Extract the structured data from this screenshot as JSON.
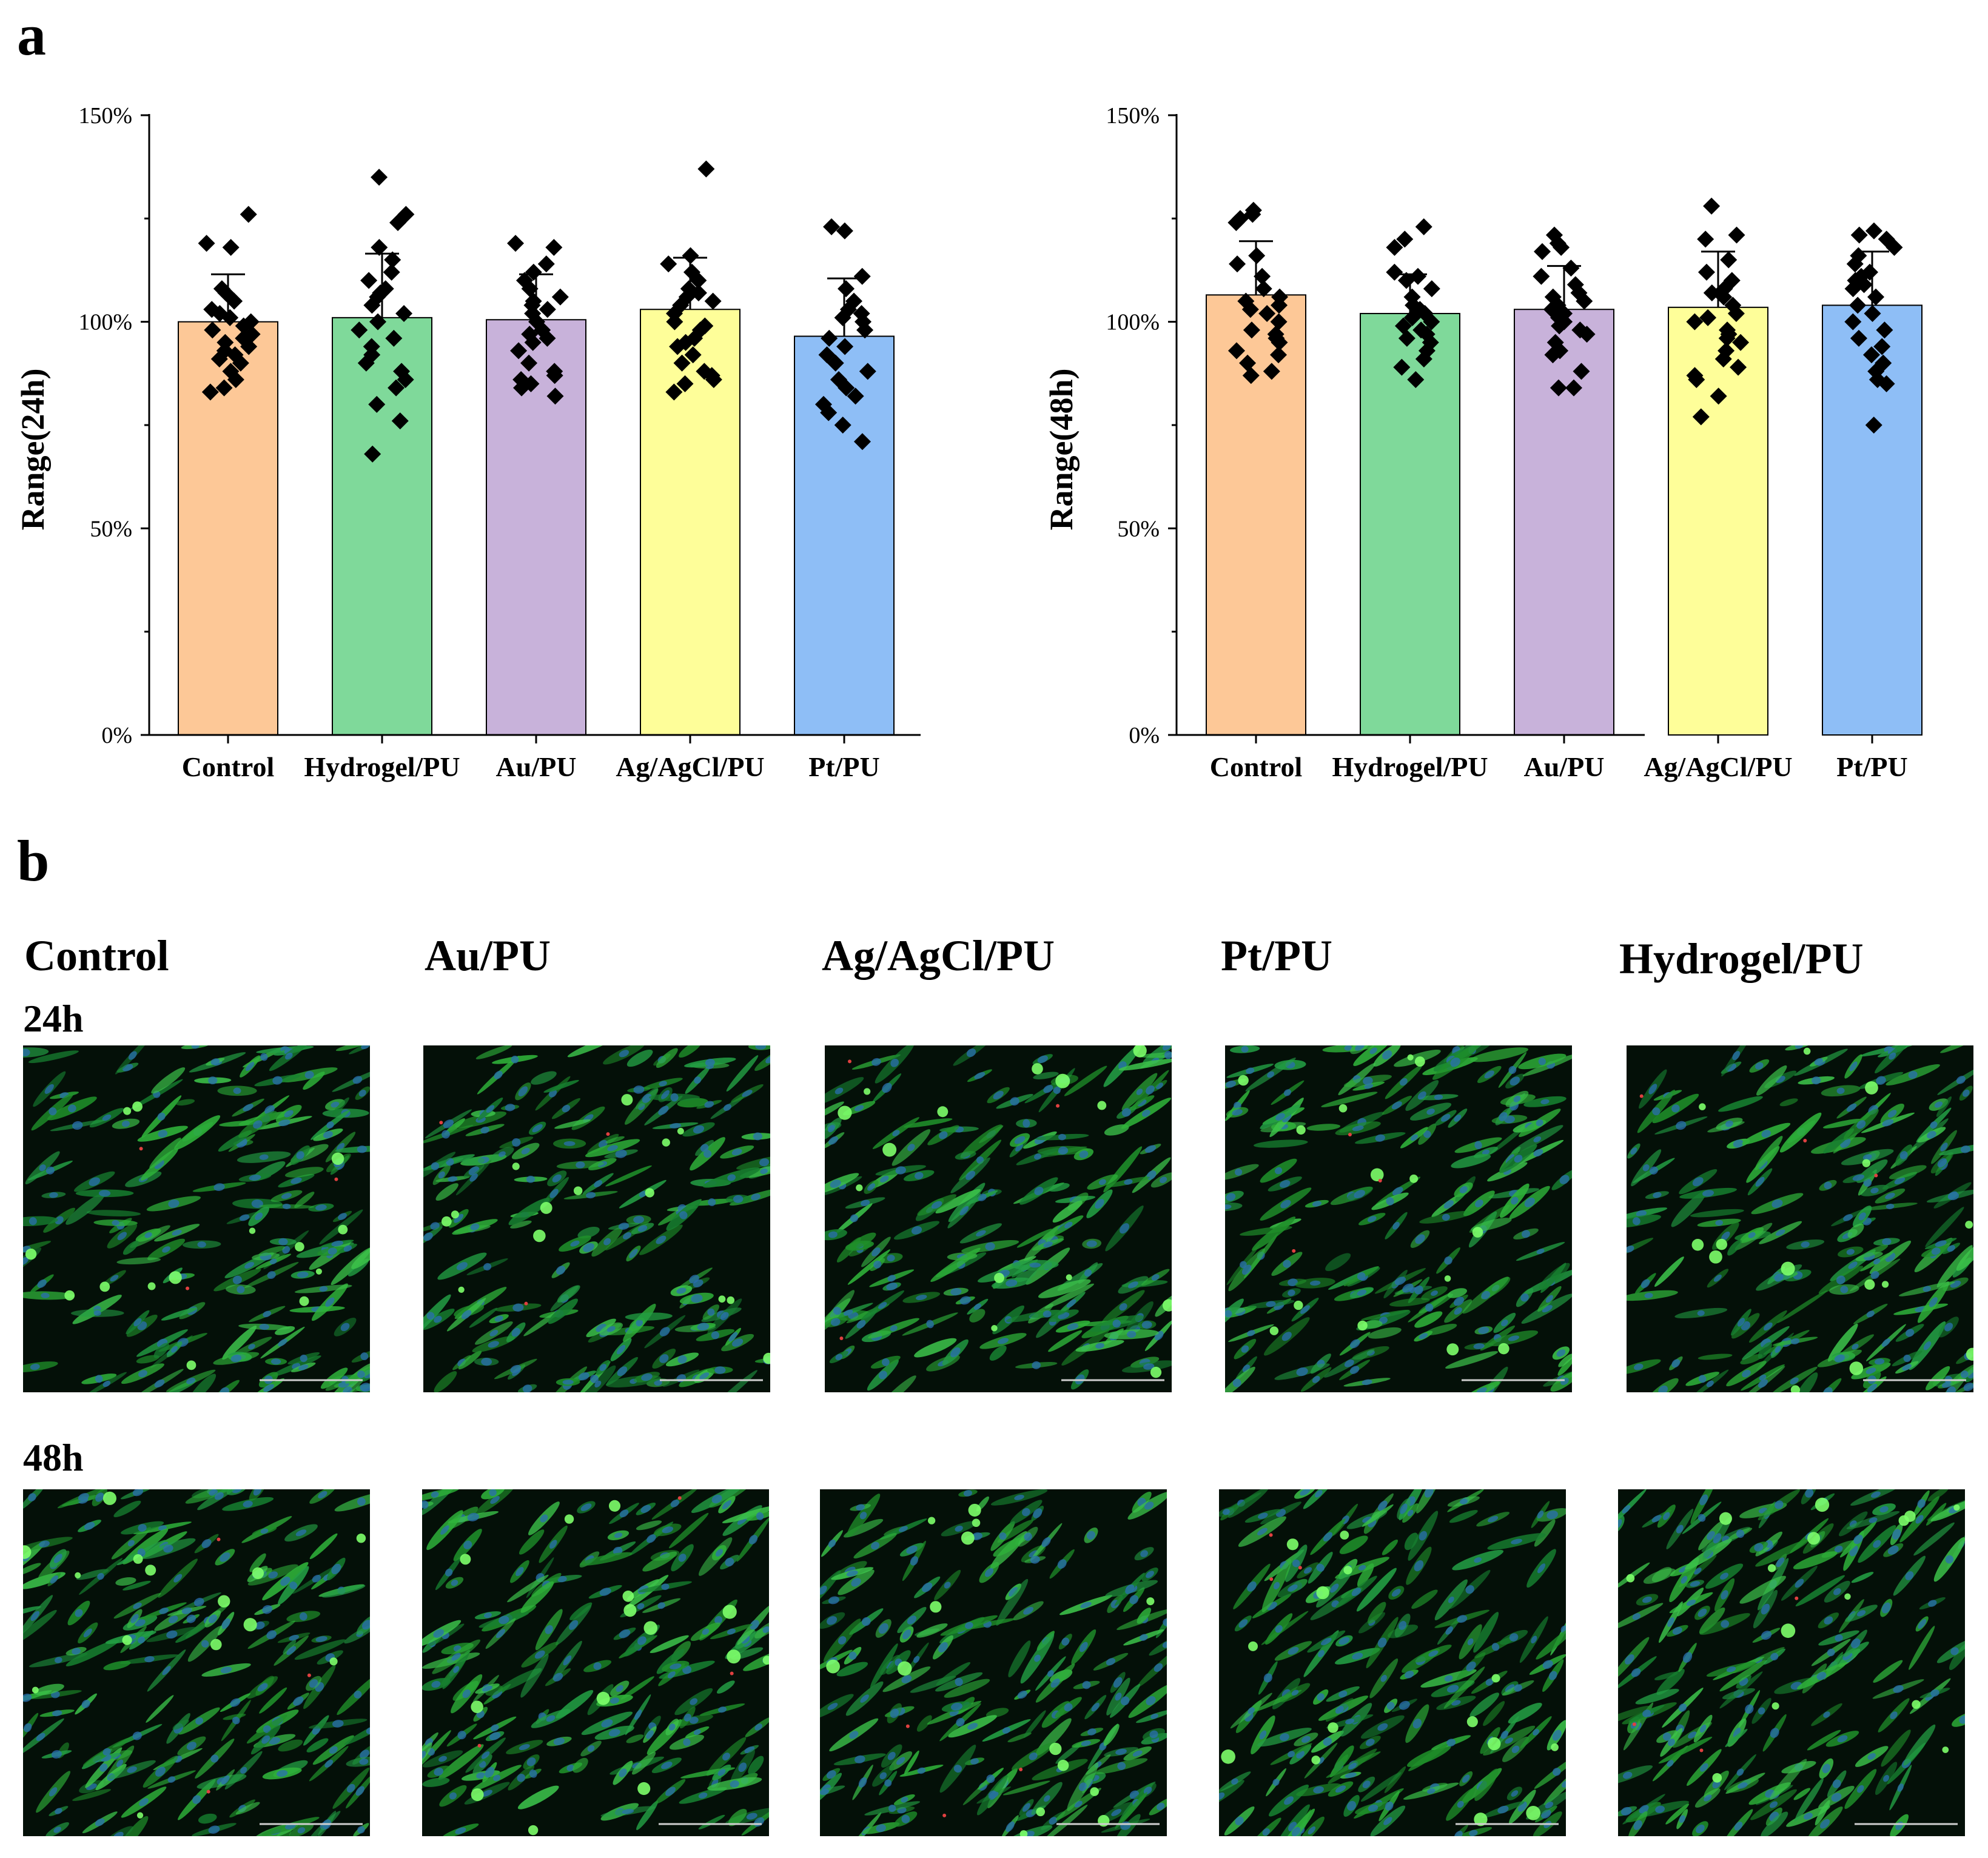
{
  "panel_a_letter": "a",
  "panel_b_letter": "b",
  "colors": {
    "Control": "#FDC897",
    "Hydrogel/PU": "#7FD99A",
    "Au/PU": "#C8B2DA",
    "Ag/AgCl/PU": "#FEFE99",
    "Pt/PU": "#8EBEF6",
    "marker": "#000000"
  },
  "chart_data": [
    {
      "type": "bar",
      "title": "",
      "xlabel": "",
      "ylabel": "Range(24h)",
      "ylim": [
        0,
        150
      ],
      "yticks": [
        "0%",
        "50%",
        "100%",
        "150%"
      ],
      "yticks_values": [
        0,
        50,
        100,
        150
      ],
      "categories": [
        "Control",
        "Hydrogel/PU",
        "Au/PU",
        "Ag/AgCl/PU",
        "Pt/PU"
      ],
      "values": [
        100,
        101,
        100.5,
        103,
        96.5
      ],
      "error": [
        11.5,
        15.5,
        11,
        12.5,
        14
      ],
      "points": [
        [
          126,
          119,
          118,
          108,
          107,
          105,
          103,
          102,
          101,
          100,
          99,
          98,
          97,
          96,
          95,
          94,
          93,
          92,
          91,
          90,
          88,
          86,
          84,
          83
        ],
        [
          135,
          126,
          124,
          118,
          115,
          112,
          110,
          108,
          107,
          106,
          104,
          102,
          100,
          98,
          96,
          94,
          92,
          90,
          88,
          86,
          84,
          80,
          76,
          68
        ],
        [
          119,
          118,
          114,
          112,
          110,
          108,
          106,
          105,
          104,
          103,
          102,
          100,
          98,
          97,
          96,
          95,
          93,
          90,
          88,
          87,
          86,
          85,
          84,
          82
        ],
        [
          137,
          116,
          114,
          112,
          110,
          108,
          107,
          106,
          105,
          104,
          102,
          100,
          99,
          98,
          96,
          95,
          94,
          92,
          90,
          88,
          87,
          86,
          85,
          83
        ],
        [
          123,
          122,
          111,
          108,
          105,
          103,
          102,
          101,
          100,
          98,
          96,
          94,
          92,
          90,
          88,
          86,
          84,
          82,
          80,
          78,
          75,
          71
        ]
      ]
    },
    {
      "type": "bar",
      "title": "",
      "xlabel": "",
      "ylabel": "Range(48h)",
      "ylim": [
        0,
        150
      ],
      "yticks": [
        "0%",
        "50%",
        "100%",
        "150%"
      ],
      "yticks_values": [
        0,
        50,
        100,
        150
      ],
      "categories": [
        "Control",
        "Hydrogel/PU",
        "Au/PU",
        "Ag/AgCl/PU",
        "Pt/PU"
      ],
      "values": [
        106.5,
        102,
        103,
        103.5,
        104
      ],
      "error": [
        13,
        9.5,
        10.5,
        13.5,
        13
      ],
      "points": [
        [
          127,
          126,
          125,
          124,
          116,
          114,
          111,
          108,
          106,
          105,
          104,
          103,
          102,
          100,
          98,
          97,
          96,
          95,
          93,
          92,
          90,
          88,
          87
        ],
        [
          123,
          120,
          118,
          112,
          111,
          110,
          108,
          106,
          104,
          103,
          102,
          101,
          100,
          99,
          98,
          97,
          96,
          95,
          93,
          91,
          89,
          86
        ],
        [
          121,
          119,
          118,
          117,
          113,
          111,
          109,
          107,
          106,
          105,
          104,
          103,
          102,
          101,
          100,
          99,
          98,
          97,
          95,
          93,
          92,
          88,
          84,
          84
        ],
        [
          128,
          121,
          120,
          115,
          112,
          110,
          108,
          107,
          106,
          104,
          102,
          101,
          100,
          98,
          97,
          96,
          95,
          93,
          91,
          89,
          87,
          86,
          82,
          77
        ],
        [
          122,
          121,
          120,
          118,
          116,
          114,
          112,
          111,
          110,
          109,
          108,
          106,
          104,
          102,
          100,
          98,
          96,
          94,
          92,
          90,
          88,
          86,
          85,
          75
        ]
      ]
    }
  ],
  "panel_b": {
    "column_titles": [
      "Control",
      "Au/PU",
      "Ag/AgCl/PU",
      "Pt/PU",
      "Hydrogel/PU"
    ],
    "row_titles": [
      "24h",
      "48h"
    ]
  }
}
